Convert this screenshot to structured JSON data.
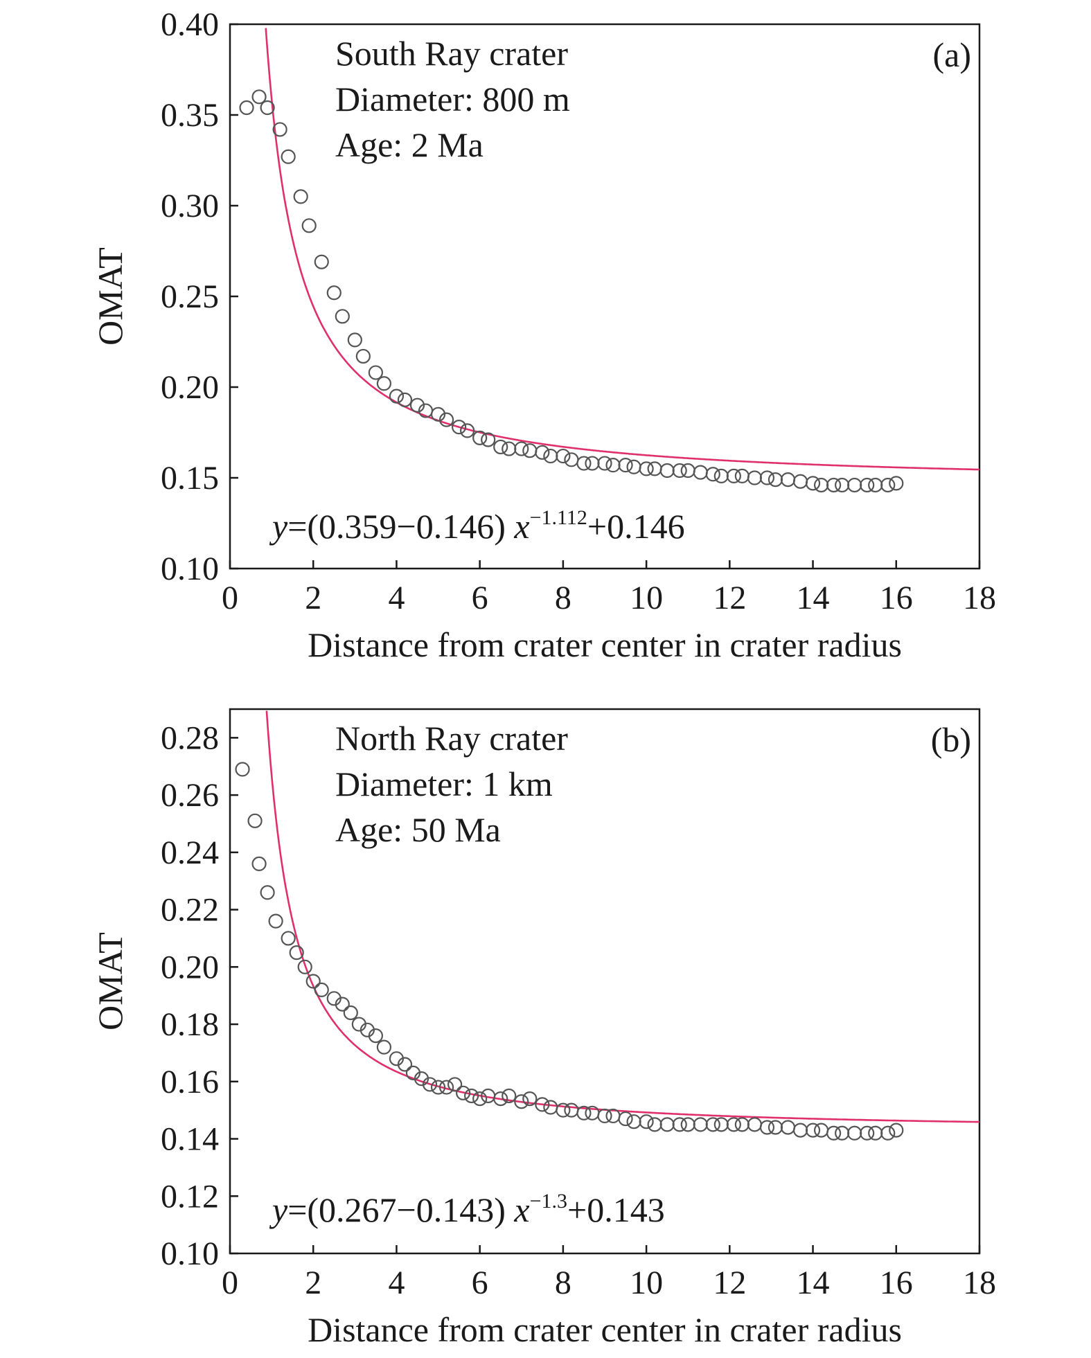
{
  "chart_data": [
    {
      "type": "scatter",
      "panel_label": "(a)",
      "annotation_lines": [
        "South Ray crater",
        "Diameter: 800 m",
        "Age: 2 Ma"
      ],
      "equation": {
        "y": "y",
        "eq_text": "=(0.359−0.146) ",
        "x": "x",
        "exponent": "−1.112",
        "tail": "+0.146"
      },
      "fit": {
        "a": 0.359,
        "c": 0.146,
        "p": 1.112
      },
      "xlabel": "Distance from crater center in crater radius",
      "ylabel": "OMAT",
      "xlim": [
        0,
        18
      ],
      "ylim": [
        0.1,
        0.4
      ],
      "xticks": [
        "0",
        "2",
        "4",
        "6",
        "8",
        "10",
        "12",
        "14",
        "16",
        "18"
      ],
      "yticks": [
        "0.10",
        "0.15",
        "0.20",
        "0.25",
        "0.30",
        "0.35",
        "0.40"
      ],
      "series": [
        {
          "marker": "open-circle",
          "x": [
            0.4,
            0.7,
            0.9,
            1.2,
            1.4,
            1.7,
            1.9,
            2.2,
            2.5,
            2.7,
            3.0,
            3.2,
            3.5,
            3.7,
            4.0,
            4.2,
            4.5,
            4.7,
            5.0,
            5.2,
            5.5,
            5.7,
            6.0,
            6.2,
            6.5,
            6.7,
            7.0,
            7.2,
            7.5,
            7.7,
            8.0,
            8.2,
            8.5,
            8.7,
            9.0,
            9.2,
            9.5,
            9.7,
            10.0,
            10.2,
            10.5,
            10.8,
            11.0,
            11.3,
            11.6,
            11.8,
            12.1,
            12.3,
            12.6,
            12.9,
            13.1,
            13.4,
            13.7,
            14.0,
            14.2,
            14.5,
            14.7,
            15.0,
            15.3,
            15.5,
            15.8,
            16.0
          ],
          "y": [
            0.354,
            0.36,
            0.354,
            0.342,
            0.327,
            0.305,
            0.289,
            0.269,
            0.252,
            0.239,
            0.226,
            0.217,
            0.208,
            0.202,
            0.195,
            0.193,
            0.19,
            0.187,
            0.185,
            0.182,
            0.178,
            0.176,
            0.172,
            0.171,
            0.167,
            0.166,
            0.166,
            0.165,
            0.164,
            0.162,
            0.162,
            0.16,
            0.158,
            0.158,
            0.158,
            0.157,
            0.157,
            0.156,
            0.155,
            0.155,
            0.154,
            0.154,
            0.154,
            0.153,
            0.152,
            0.151,
            0.151,
            0.151,
            0.15,
            0.15,
            0.149,
            0.149,
            0.148,
            0.147,
            0.146,
            0.146,
            0.146,
            0.146,
            0.146,
            0.146,
            0.146,
            0.147
          ]
        }
      ]
    },
    {
      "type": "scatter",
      "panel_label": "(b)",
      "annotation_lines": [
        "North Ray crater",
        "Diameter: 1 km",
        "Age: 50 Ma"
      ],
      "equation": {
        "y": "y",
        "eq_text": "=(0.267−0.143) ",
        "x": "x",
        "exponent": "−1.3",
        "tail": "+0.143"
      },
      "fit": {
        "a": 0.267,
        "c": 0.143,
        "p": 1.3
      },
      "xlabel": "Distance from crater center in crater radius",
      "ylabel": "OMAT",
      "xlim": [
        0,
        18
      ],
      "ylim": [
        0.1,
        0.29
      ],
      "xticks": [
        "0",
        "2",
        "4",
        "6",
        "8",
        "10",
        "12",
        "14",
        "16",
        "18"
      ],
      "yticks": [
        "0.10",
        "0.12",
        "0.14",
        "0.16",
        "0.18",
        "0.20",
        "0.22",
        "0.24",
        "0.26",
        "0.28"
      ],
      "series": [
        {
          "marker": "open-circle",
          "x": [
            0.3,
            0.6,
            0.7,
            0.9,
            1.1,
            1.4,
            1.6,
            1.8,
            2.0,
            2.2,
            2.5,
            2.7,
            2.9,
            3.1,
            3.3,
            3.5,
            3.7,
            4.0,
            4.2,
            4.4,
            4.6,
            4.8,
            5.0,
            5.2,
            5.4,
            5.6,
            5.8,
            6.0,
            6.2,
            6.5,
            6.7,
            7.0,
            7.2,
            7.5,
            7.7,
            8.0,
            8.2,
            8.5,
            8.7,
            9.0,
            9.2,
            9.5,
            9.7,
            10.0,
            10.2,
            10.5,
            10.8,
            11.0,
            11.3,
            11.6,
            11.8,
            12.1,
            12.3,
            12.6,
            12.9,
            13.1,
            13.4,
            13.7,
            14.0,
            14.2,
            14.5,
            14.7,
            15.0,
            15.3,
            15.5,
            15.8,
            16.0
          ],
          "y": [
            0.269,
            0.251,
            0.236,
            0.226,
            0.216,
            0.21,
            0.205,
            0.2,
            0.195,
            0.192,
            0.189,
            0.187,
            0.184,
            0.18,
            0.178,
            0.176,
            0.172,
            0.168,
            0.166,
            0.163,
            0.161,
            0.159,
            0.158,
            0.158,
            0.159,
            0.156,
            0.155,
            0.154,
            0.155,
            0.154,
            0.155,
            0.153,
            0.154,
            0.152,
            0.151,
            0.15,
            0.15,
            0.149,
            0.149,
            0.148,
            0.148,
            0.147,
            0.146,
            0.146,
            0.145,
            0.145,
            0.145,
            0.145,
            0.145,
            0.145,
            0.145,
            0.145,
            0.145,
            0.145,
            0.144,
            0.144,
            0.144,
            0.143,
            0.143,
            0.143,
            0.142,
            0.142,
            0.142,
            0.142,
            0.142,
            0.142,
            0.143
          ]
        }
      ]
    }
  ]
}
